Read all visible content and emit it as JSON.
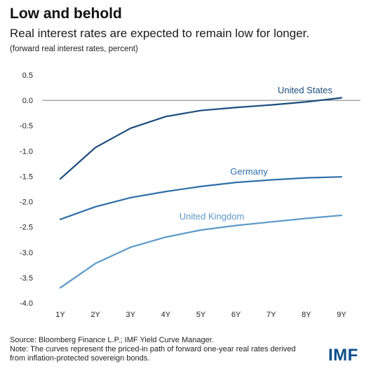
{
  "header": {
    "title": "Low and behold",
    "subtitle": "Real interest rates are expected to remain low for longer.",
    "note": "(forward real interest rates, percent)"
  },
  "footer": {
    "source": "Source: Bloomberg Finance L.P.; IMF Yield Curve Manager.",
    "note_line1": "Note: The curves represent the priced-in path of forward one-year real rates derived",
    "note_line2": "from inflation-protected sovereign bonds.",
    "logo": "IMF"
  },
  "chart_data": {
    "type": "line",
    "title": "Low and behold",
    "subtitle": "Real interest rates are expected to remain low for longer.",
    "ylabel": "(forward real interest rates, percent)",
    "xlabel": "",
    "categories": [
      "1Y",
      "2Y",
      "3Y",
      "4Y",
      "5Y",
      "6Y",
      "7Y",
      "8Y",
      "9Y"
    ],
    "ylim": [
      -4.0,
      0.5
    ],
    "yticks": [
      0.5,
      0.0,
      -0.5,
      -1.0,
      -1.5,
      -2.0,
      -2.5,
      -3.0,
      -3.5,
      -4.0
    ],
    "ytick_labels": [
      "0.5",
      "0.0",
      "-0.5",
      "-1.0",
      "-1.5",
      "-2.0",
      "-2.5",
      "-3.0",
      "-3.5",
      "-4.0"
    ],
    "grid": false,
    "series": [
      {
        "name": "United States",
        "color": "#1c4d7e",
        "values": [
          -1.55,
          -0.93,
          -0.55,
          -0.32,
          -0.2,
          -0.14,
          -0.09,
          -0.03,
          0.05
        ]
      },
      {
        "name": "Germany",
        "color": "#2f6fa8",
        "values": [
          -2.35,
          -2.1,
          -1.92,
          -1.8,
          -1.7,
          -1.62,
          -1.57,
          -1.53,
          -1.51
        ]
      },
      {
        "name": "United Kingdom",
        "color": "#5b9ac9",
        "values": [
          -3.7,
          -3.22,
          -2.9,
          -2.7,
          -2.56,
          -2.47,
          -2.4,
          -2.33,
          -2.27
        ]
      }
    ]
  }
}
